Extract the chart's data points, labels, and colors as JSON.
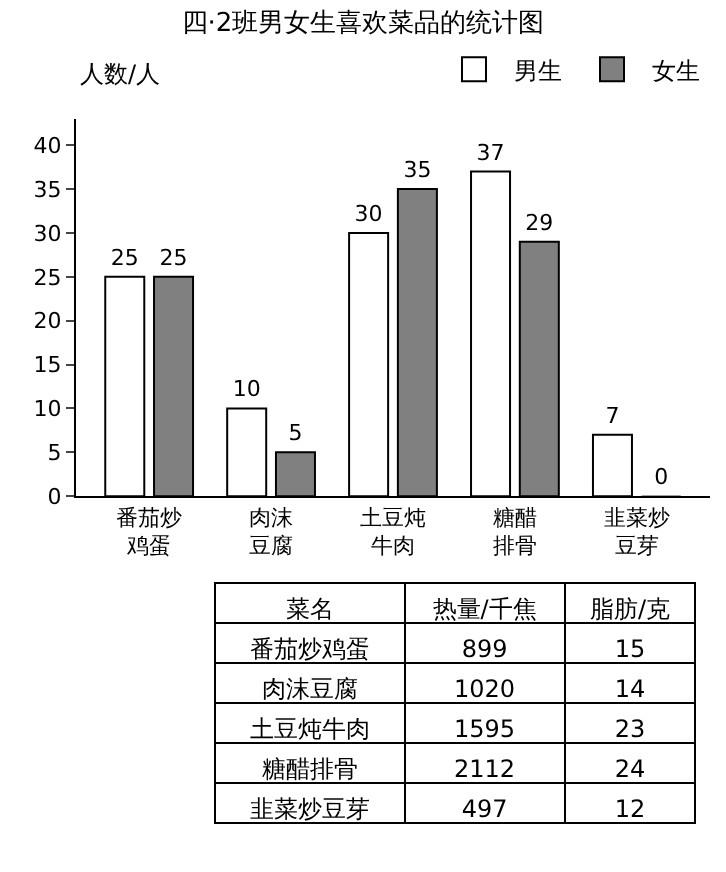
{
  "chart_data": [
    {
      "type": "bar",
      "title": "四·2班男女生喜欢菜品的统计图",
      "ylabel": "人数/人",
      "categories": [
        "番茄炒鸡蛋",
        "肉沫豆腐",
        "土豆炖牛肉",
        "糖醋排骨",
        "韭菜炒豆芽"
      ],
      "series": [
        {
          "name": "男生",
          "color": "#ffffff",
          "values": [
            25,
            10,
            30,
            37,
            7
          ]
        },
        {
          "name": "女生",
          "color": "#808080",
          "values": [
            25,
            5,
            35,
            29,
            0
          ]
        }
      ],
      "ylim": [
        0,
        43
      ],
      "yticks": [
        0,
        5,
        10,
        15,
        20,
        25,
        30,
        35,
        40
      ],
      "data_labels": true,
      "legend": "top right"
    },
    {
      "type": "other",
      "data_labels": true,
      "xlabel": "菜名",
      "categories": [
        "番茄炒鸡蛋",
        "肉沫豆腐",
        "土豆炖牛肉",
        "糖醋排骨",
        "韭菜炒豆芽"
      ],
      "series": [
        {
          "name": "热量/千焦",
          "values": [
            899,
            1020,
            1595,
            2112,
            497
          ]
        },
        {
          "name": "脂肪/克",
          "values": [
            15,
            14,
            23,
            24,
            12
          ]
        }
      ]
    }
  ]
}
